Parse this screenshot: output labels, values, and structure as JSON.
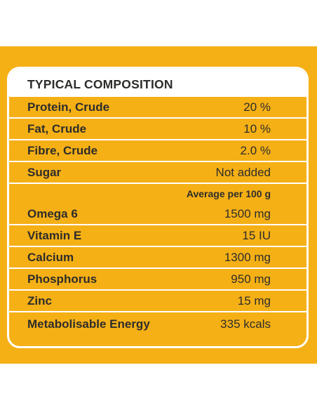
{
  "title": "TYPICAL COMPOSITION",
  "rows_top": [
    {
      "label": "Protein, Crude",
      "value": "20 %"
    },
    {
      "label": "Fat, Crude",
      "value": "10 %"
    },
    {
      "label": "Fibre, Crude",
      "value": "2.0 %"
    },
    {
      "label": "Sugar",
      "value": "Not added"
    }
  ],
  "average_header": "Average per 100 g",
  "rows_bottom": [
    {
      "label": "Omega 6",
      "value": "1500 mg"
    },
    {
      "label": "Vitamin E",
      "value": "15 IU"
    },
    {
      "label": "Calcium",
      "value": "1300 mg"
    },
    {
      "label": "Phosphorus",
      "value": "950 mg"
    },
    {
      "label": "Zinc",
      "value": "15 mg"
    },
    {
      "label": "Metabolisable Energy",
      "value": "335 kcals"
    }
  ],
  "colors": {
    "panel": "#f5b016",
    "text": "#2e2d2b",
    "line": "#ffffff"
  }
}
